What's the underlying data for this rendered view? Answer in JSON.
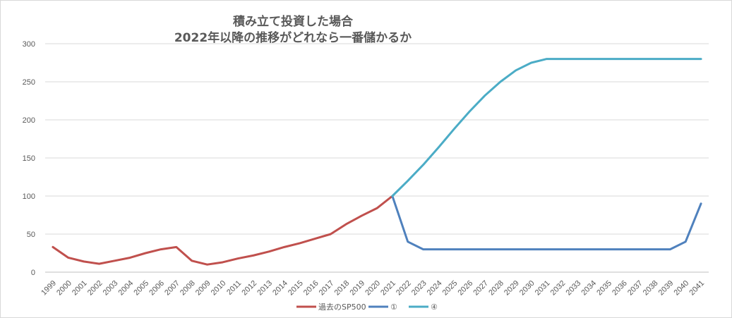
{
  "chart_data": {
    "type": "line",
    "title": "積み立て投資した場合",
    "subtitle": "2022年以降の推移がどれなら一番儲かるか",
    "xlabel": "",
    "ylabel": "",
    "ylim": [
      0,
      300
    ],
    "yticks": [
      "0",
      "50",
      "100",
      "150",
      "200",
      "250",
      "300"
    ],
    "grid": true,
    "legend_position": "bottom",
    "x": [
      "1999",
      "2000",
      "2001",
      "2002",
      "2003",
      "2004",
      "2005",
      "2006",
      "2007",
      "2008",
      "2009",
      "2010",
      "2011",
      "2012",
      "2013",
      "2014",
      "2015",
      "2016",
      "2017",
      "2018",
      "2019",
      "2020",
      "2021",
      "2022",
      "2023",
      "2024",
      "2025",
      "2026",
      "2027",
      "2028",
      "2029",
      "2030",
      "2031",
      "2032",
      "2033",
      "2034",
      "2035",
      "2036",
      "2037",
      "2038",
      "2039",
      "2040",
      "2041"
    ],
    "series": [
      {
        "name": "過去のSP500",
        "color": "#c0504d",
        "values": [
          33,
          19,
          14,
          11,
          15,
          19,
          25,
          30,
          33,
          15,
          10,
          13,
          18,
          22,
          27,
          33,
          38,
          44,
          50,
          63,
          74,
          84,
          100,
          null,
          null,
          null,
          null,
          null,
          null,
          null,
          null,
          null,
          null,
          null,
          null,
          null,
          null,
          null,
          null,
          null,
          null,
          null,
          null
        ]
      },
      {
        "name": "①",
        "color": "#4f81bd",
        "values": [
          null,
          null,
          null,
          null,
          null,
          null,
          null,
          null,
          null,
          null,
          null,
          null,
          null,
          null,
          null,
          null,
          null,
          null,
          null,
          null,
          null,
          null,
          100,
          40,
          30,
          30,
          30,
          30,
          30,
          30,
          30,
          30,
          30,
          30,
          30,
          30,
          30,
          30,
          30,
          30,
          30,
          40,
          90
        ]
      },
      {
        "name": "④",
        "color": "#4bacc6",
        "values": [
          null,
          null,
          null,
          null,
          null,
          null,
          null,
          null,
          null,
          null,
          null,
          null,
          null,
          null,
          null,
          null,
          null,
          null,
          null,
          null,
          null,
          null,
          100,
          120,
          141,
          164,
          188,
          211,
          232,
          250,
          265,
          275,
          280,
          280,
          280,
          280,
          280,
          280,
          280,
          280,
          280,
          280,
          280
        ]
      }
    ]
  }
}
